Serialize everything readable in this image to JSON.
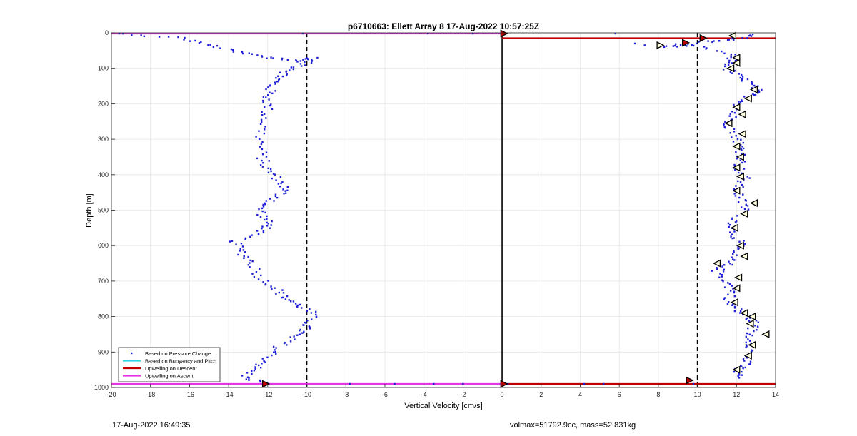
{
  "footer": {
    "timestamp": "17-Aug-2022 16:49:35",
    "stats": "volmax=51792.9cc, mass=52.831kg"
  },
  "colors": {
    "points": "#1f1fd6",
    "buoyancy": "#33d6e6",
    "descent": "#c00000",
    "ascent": "#e633e6",
    "triangle_fill": "#ffffe0"
  },
  "chart_data": {
    "type": "scatter",
    "title": "p6710663: Ellett Array 8 17-Aug-2022 10:57:25Z",
    "xlabel": "Vertical Velocity [cm/s]",
    "ylabel": "Depth [m]",
    "xlim": [
      -20,
      14
    ],
    "ylim": [
      0,
      1000
    ],
    "y_reversed": true,
    "grid": true,
    "x_ticks": [
      "-20",
      "-18",
      "-16",
      "-14",
      "-12",
      "-10",
      "-8",
      "-6",
      "-4",
      "-2",
      "0",
      "2",
      "4",
      "6",
      "8",
      "10",
      "12",
      "14"
    ],
    "y_ticks": [
      "0",
      "100",
      "200",
      "300",
      "400",
      "500",
      "600",
      "700",
      "800",
      "900",
      "1000"
    ],
    "legend_position": "bottom-left",
    "legend": [
      "Based on Pressure Change",
      "Based on Buoyancy and Pitch",
      "Upwelling on Descent",
      "Upwelling on Ascent"
    ],
    "reference_lines_x": [
      -10,
      0,
      10
    ],
    "upwelling_descent_depths": [
      15,
      990
    ],
    "upwelling_ascent_depths": [
      2,
      990
    ],
    "descent_profile": [
      [
        -19.5,
        3
      ],
      [
        -16.3,
        15
      ],
      [
        -15.0,
        35
      ],
      [
        -13.5,
        55
      ],
      [
        -12.0,
        70
      ],
      [
        -10.5,
        80
      ],
      [
        -9.7,
        70
      ],
      [
        -10.2,
        90
      ],
      [
        -11.0,
        110
      ],
      [
        -11.5,
        130
      ],
      [
        -11.8,
        150
      ],
      [
        -12.0,
        180
      ],
      [
        -12.0,
        210
      ],
      [
        -12.2,
        250
      ],
      [
        -12.4,
        300
      ],
      [
        -12.3,
        350
      ],
      [
        -12.1,
        380
      ],
      [
        -11.5,
        410
      ],
      [
        -11.1,
        440
      ],
      [
        -11.5,
        465
      ],
      [
        -12.4,
        490
      ],
      [
        -12.2,
        520
      ],
      [
        -11.9,
        545
      ],
      [
        -12.6,
        565
      ],
      [
        -13.7,
        590
      ],
      [
        -13.3,
        620
      ],
      [
        -12.8,
        650
      ],
      [
        -12.4,
        690
      ],
      [
        -11.6,
        720
      ],
      [
        -11.2,
        745
      ],
      [
        -10.5,
        765
      ],
      [
        -9.7,
        790
      ],
      [
        -9.9,
        820
      ],
      [
        -10.2,
        840
      ],
      [
        -10.8,
        860
      ],
      [
        -11.5,
        890
      ],
      [
        -12.0,
        920
      ],
      [
        -12.6,
        945
      ],
      [
        -13.2,
        970
      ],
      [
        -12.1,
        990
      ]
    ],
    "descent_surface_points": [
      [
        -19.6,
        2
      ],
      [
        -10.2,
        2
      ],
      [
        -3.8,
        2
      ],
      [
        -1.5,
        2
      ],
      [
        -7.8,
        990
      ],
      [
        -5.5,
        990
      ],
      [
        -3.5,
        990
      ],
      [
        -2.0,
        990
      ]
    ],
    "ascent_profile": [
      [
        13.0,
        3
      ],
      [
        11.8,
        20
      ],
      [
        10.5,
        25
      ],
      [
        8.2,
        38
      ],
      [
        9.8,
        35
      ],
      [
        11.7,
        60
      ],
      [
        11.8,
        80
      ],
      [
        11.5,
        100
      ],
      [
        12.0,
        120
      ],
      [
        12.6,
        140
      ],
      [
        13.0,
        160
      ],
      [
        12.7,
        180
      ],
      [
        12.2,
        200
      ],
      [
        11.8,
        230
      ],
      [
        11.6,
        260
      ],
      [
        12.0,
        290
      ],
      [
        12.2,
        320
      ],
      [
        12.3,
        350
      ],
      [
        12.1,
        380
      ],
      [
        12.4,
        410
      ],
      [
        12.0,
        440
      ],
      [
        12.2,
        470
      ],
      [
        12.5,
        500
      ],
      [
        11.9,
        530
      ],
      [
        11.8,
        560
      ],
      [
        12.2,
        590
      ],
      [
        11.8,
        620
      ],
      [
        11.6,
        650
      ],
      [
        11.0,
        670
      ],
      [
        11.5,
        700
      ],
      [
        11.8,
        730
      ],
      [
        11.6,
        760
      ],
      [
        12.0,
        780
      ],
      [
        12.6,
        800
      ],
      [
        12.9,
        820
      ],
      [
        12.7,
        850
      ],
      [
        12.8,
        880
      ],
      [
        12.6,
        910
      ],
      [
        12.4,
        935
      ],
      [
        12.0,
        955
      ],
      [
        12.2,
        975
      ]
    ],
    "ascent_surface_points": [
      [
        5.8,
        2
      ],
      [
        6.8,
        30
      ],
      [
        7.3,
        35
      ],
      [
        8.3,
        40
      ],
      [
        0.3,
        990
      ],
      [
        4.2,
        990
      ],
      [
        5.2,
        990
      ],
      [
        9.8,
        990
      ]
    ],
    "buoyancy_triangles_left": [
      [
        -12.1,
        990
      ]
    ],
    "buoyancy_triangles_right": [
      [
        0.1,
        2
      ],
      [
        8.1,
        35
      ],
      [
        9.4,
        28
      ],
      [
        10.3,
        15
      ],
      [
        11.8,
        8
      ],
      [
        12.0,
        70
      ],
      [
        12.0,
        85
      ],
      [
        11.7,
        100
      ],
      [
        12.9,
        160
      ],
      [
        12.6,
        185
      ],
      [
        12.0,
        210
      ],
      [
        12.3,
        230
      ],
      [
        11.6,
        255
      ],
      [
        12.3,
        285
      ],
      [
        12.0,
        320
      ],
      [
        12.2,
        350
      ],
      [
        12.0,
        380
      ],
      [
        12.2,
        405
      ],
      [
        12.0,
        445
      ],
      [
        12.9,
        480
      ],
      [
        12.4,
        510
      ],
      [
        11.9,
        550
      ],
      [
        12.2,
        600
      ],
      [
        12.4,
        630
      ],
      [
        11.0,
        650
      ],
      [
        12.1,
        690
      ],
      [
        12.0,
        720
      ],
      [
        11.9,
        760
      ],
      [
        12.4,
        790
      ],
      [
        12.8,
        800
      ],
      [
        12.7,
        820
      ],
      [
        13.5,
        850
      ],
      [
        12.8,
        880
      ],
      [
        12.6,
        910
      ],
      [
        12.0,
        950
      ],
      [
        9.6,
        980
      ],
      [
        0.1,
        990
      ]
    ]
  }
}
